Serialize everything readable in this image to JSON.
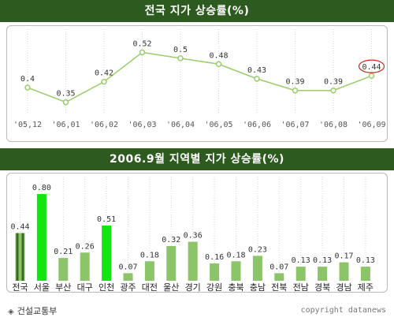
{
  "colors": {
    "banner": "#2d5a1e",
    "line": "#9acd6a",
    "bar": "#8cc46a",
    "bar_highlight": "#11e611",
    "bar_national": "#3a6b22",
    "highlight_circle": "#dd2222"
  },
  "chart_data": [
    {
      "type": "line",
      "title": "전국 지가 상승률(%)",
      "categories": [
        "'05,12",
        "'06,01",
        "'06,02",
        "'06,03",
        "'06,04",
        "'06,05",
        "'06,06",
        "'06,07",
        "'06,08",
        "'06,09"
      ],
      "values": [
        0.4,
        0.35,
        0.42,
        0.52,
        0.5,
        0.48,
        0.43,
        0.39,
        0.39,
        0.44
      ],
      "labels": [
        "0.4",
        "0.35",
        "0.42",
        "0.52",
        "0.5",
        "0.48",
        "0.43",
        "0.39",
        "0.39",
        "0.44"
      ],
      "highlight_index": 9,
      "ylim": [
        0.33,
        0.54
      ],
      "grid": "vertical dotted"
    },
    {
      "type": "bar",
      "title": "2006.9월 지역별 지가 상승률(%)",
      "categories": [
        "전국",
        "서울",
        "부산",
        "대구",
        "인천",
        "광주",
        "대전",
        "울산",
        "경기",
        "강원",
        "충북",
        "충남",
        "전북",
        "전남",
        "경북",
        "경남",
        "제주"
      ],
      "values": [
        0.44,
        0.8,
        0.21,
        0.26,
        0.51,
        0.07,
        0.18,
        0.32,
        0.36,
        0.16,
        0.18,
        0.23,
        0.07,
        0.13,
        0.13,
        0.17,
        0.13
      ],
      "labels": [
        "0.44",
        "0.80",
        "0.21",
        "0.26",
        "0.51",
        "0.07",
        "0.18",
        "0.32",
        "0.36",
        "0.16",
        "0.18",
        "0.23",
        "0.07",
        "0.13",
        "0.13",
        "0.17",
        "0.13"
      ],
      "highlight": [
        "national",
        "top",
        "normal",
        "normal",
        "top",
        "normal",
        "normal",
        "normal",
        "normal",
        "normal",
        "normal",
        "normal",
        "normal",
        "normal",
        "normal",
        "normal",
        "normal"
      ],
      "ylim": [
        0,
        0.8
      ],
      "grid": "vertical dotted"
    }
  ],
  "footer": {
    "source": "건설교통부",
    "copyright": "copyright datanews"
  }
}
